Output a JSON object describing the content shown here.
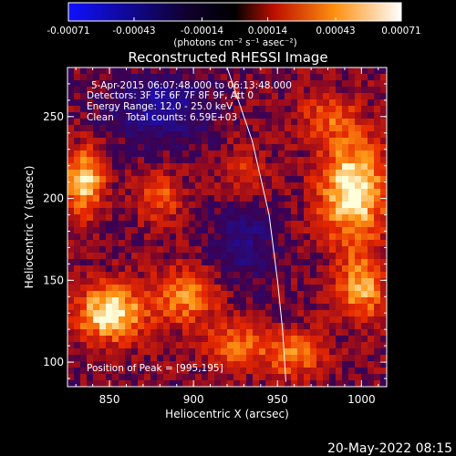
{
  "chart_data": {
    "type": "heatmap",
    "title": "Reconstructed RHESSI Image",
    "xlabel": "Heliocentric X (arcsec)",
    "ylabel": "Heliocentric Y (arcsec)",
    "xlim": [
      825,
      1015
    ],
    "ylim": [
      85,
      280
    ],
    "x_ticks": [
      850,
      900,
      950,
      1000
    ],
    "y_ticks": [
      100,
      150,
      200,
      250
    ],
    "colorbar": {
      "range": [
        -0.00071,
        0.00071
      ],
      "tick_labels": [
        "-0.00071",
        "-0.00043",
        "-0.00014",
        "0.00014",
        "0.00043",
        "0.00071"
      ],
      "tick_values": [
        -0.00071,
        -0.00043,
        -0.00014,
        0.00014,
        0.00043,
        0.00071
      ],
      "units_label": "(photons cm⁻² s⁻¹ asec⁻²)",
      "colors": [
        "#1010ff",
        "#000000",
        "#ff2020",
        "#ffe060",
        "#ffffff"
      ]
    },
    "annotations": {
      "time_range": "5-Apr-2015 06:07:48.000 to 06:13:48.000",
      "detectors": "Detectors: 3F 5F 6F 7F 8F 9F, Att 0",
      "energy_range": "Energy Range: 12.0 - 25.0 keV",
      "clean_counts": "Clean    Total counts: 6.59E+03",
      "peak_position": "Position of Peak = [995,195]"
    },
    "peak": {
      "x": 995,
      "y": 195
    },
    "sources": [
      {
        "x": 995,
        "y": 205,
        "amp": 1.0,
        "sx": 14,
        "sy": 22
      },
      {
        "x": 850,
        "y": 130,
        "amp": 0.95,
        "sx": 14,
        "sy": 12
      },
      {
        "x": 835,
        "y": 210,
        "amp": 0.85,
        "sx": 8,
        "sy": 14
      },
      {
        "x": 895,
        "y": 140,
        "amp": 0.6,
        "sx": 14,
        "sy": 12
      },
      {
        "x": 1000,
        "y": 145,
        "amp": 0.7,
        "sx": 10,
        "sy": 14
      },
      {
        "x": 925,
        "y": 110,
        "amp": 0.55,
        "sx": 12,
        "sy": 10
      },
      {
        "x": 960,
        "y": 105,
        "amp": 0.6,
        "sx": 12,
        "sy": 10
      },
      {
        "x": 880,
        "y": 200,
        "amp": 0.45,
        "sx": 10,
        "sy": 10
      },
      {
        "x": 930,
        "y": 215,
        "amp": 0.35,
        "sx": 10,
        "sy": 12
      },
      {
        "x": 980,
        "y": 250,
        "amp": 0.4,
        "sx": 12,
        "sy": 10
      },
      {
        "x": 880,
        "y": 255,
        "amp": -0.6,
        "sx": 20,
        "sy": 14
      },
      {
        "x": 930,
        "y": 175,
        "amp": -0.4,
        "sx": 14,
        "sy": 20
      }
    ],
    "limb_curve": [
      [
        920,
        280
      ],
      [
        935,
        235
      ],
      [
        945,
        190
      ],
      [
        950,
        150
      ],
      [
        953,
        120
      ],
      [
        955,
        88
      ]
    ],
    "grid": false
  },
  "footer": {
    "date": "20-May-2022 08:15"
  }
}
